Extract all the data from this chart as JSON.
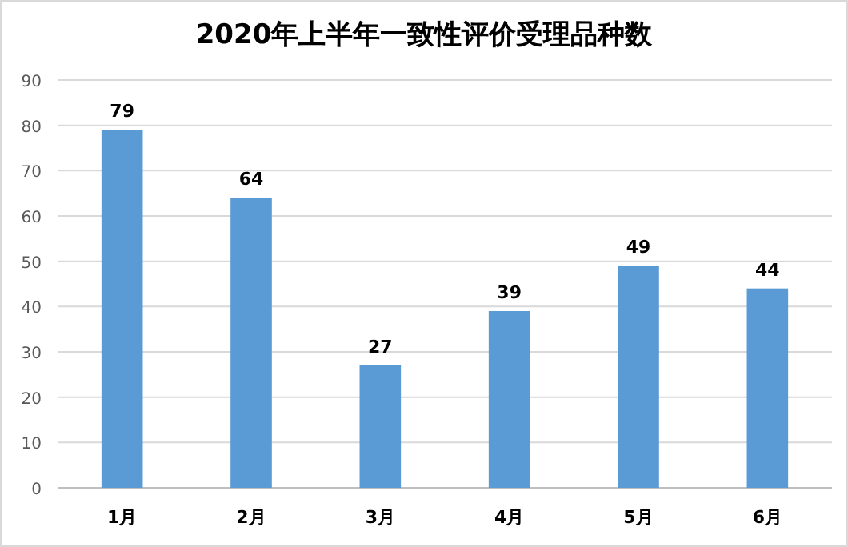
{
  "chart_data": {
    "type": "bar",
    "title": "2020年上半年一致性评价受理品种数",
    "categories": [
      "1月",
      "2月",
      "3月",
      "4月",
      "5月",
      "6月"
    ],
    "values": [
      79,
      64,
      27,
      39,
      49,
      44
    ],
    "color": "#5b9bd5",
    "ylim": [
      0,
      90
    ],
    "yticks": [
      0,
      10,
      20,
      30,
      40,
      50,
      60,
      70,
      80,
      90
    ],
    "grid": "y",
    "data_labels": true
  }
}
